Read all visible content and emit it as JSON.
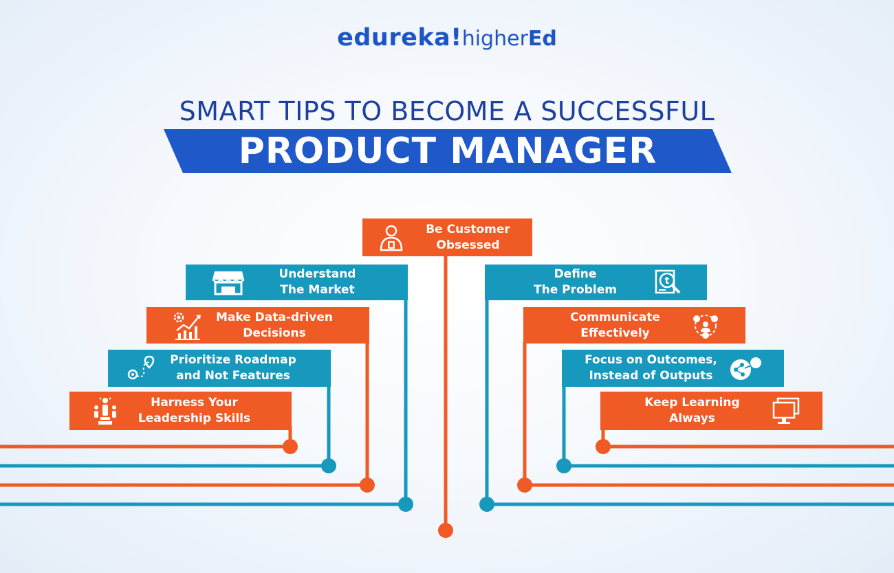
{
  "logo": {
    "brand": "edureka!",
    "sub": "higher",
    "sub_bold": "Ed"
  },
  "headline": "SMART TIPS TO BECOME A SUCCESSFUL",
  "banner": "PRODUCT MANAGER",
  "colors": {
    "orange": "#f05a25",
    "teal": "#1798bd",
    "blue": "#1f58c9",
    "title_blue": "#1c3fa0"
  },
  "tips": {
    "customer": {
      "text": "Be Customer\nObsessed",
      "icon": "customer-avatar-icon"
    },
    "market": {
      "text": "Understand\nThe Market",
      "icon": "storefront-icon"
    },
    "data": {
      "text": "Make Data-driven\nDecisions",
      "icon": "growth-chart-icon"
    },
    "roadmap": {
      "text": "Prioritize Roadmap\nand Not Features",
      "icon": "roadmap-route-icon"
    },
    "leadership": {
      "text": "Harness Your\nLeadership Skills",
      "icon": "leadership-icon"
    },
    "problem": {
      "text": "Define\nThe Problem",
      "icon": "problem-search-icon"
    },
    "communicate": {
      "text": "Communicate\nEffectively",
      "icon": "team-communication-icon"
    },
    "outcomes": {
      "text": "Focus on Outcomes,\nInstead of Outputs",
      "icon": "outcome-target-icon"
    },
    "learning": {
      "text": "Keep Learning\nAlways",
      "icon": "computer-screen-icon"
    }
  }
}
